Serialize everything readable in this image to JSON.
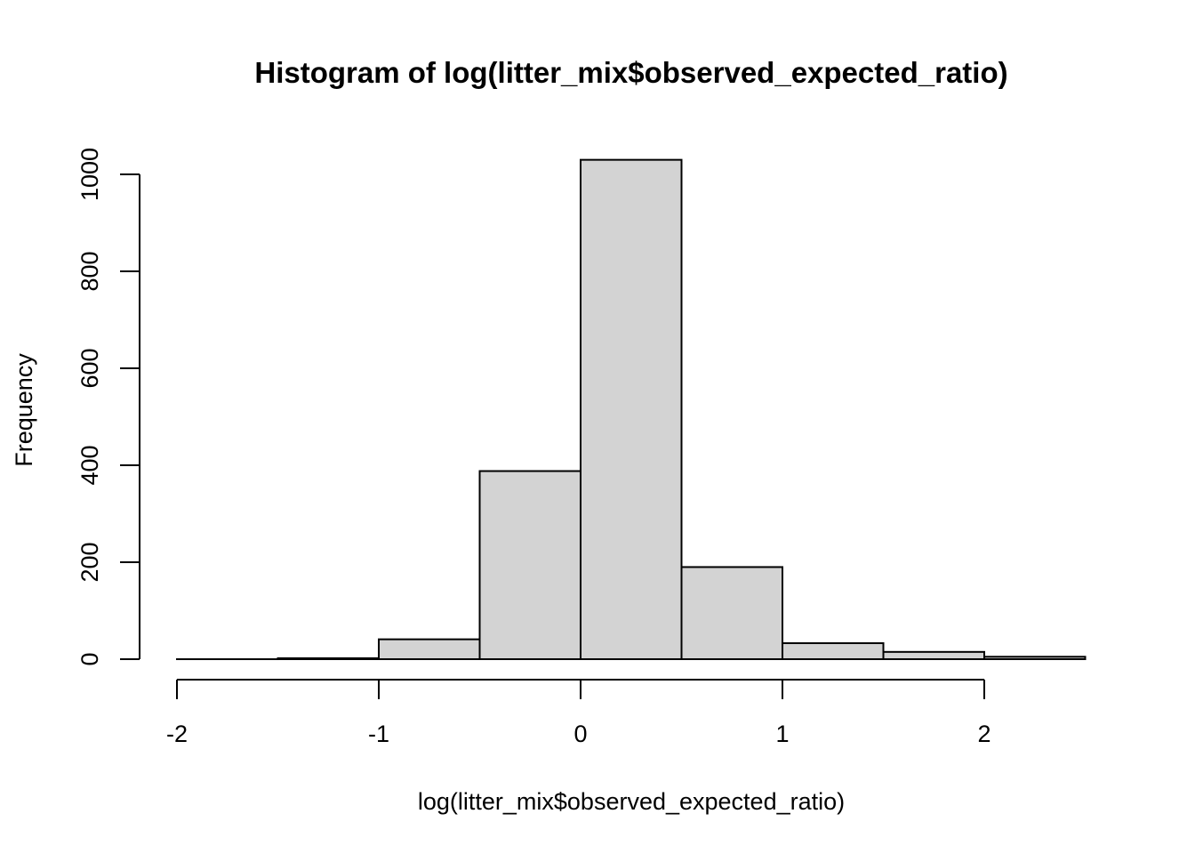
{
  "chart_data": {
    "type": "bar",
    "title": "Histogram of log(litter_mix$observed_expected_ratio)",
    "xlabel": "log(litter_mix$observed_expected_ratio)",
    "ylabel": "Frequency",
    "x_ticks": [
      -2,
      -1,
      0,
      1,
      2
    ],
    "y_ticks": [
      0,
      200,
      400,
      600,
      800,
      1000
    ],
    "bins": [
      {
        "start": -2.0,
        "end": -1.5,
        "count": 0
      },
      {
        "start": -1.5,
        "end": -1.0,
        "count": 2
      },
      {
        "start": -1.0,
        "end": -0.5,
        "count": 41
      },
      {
        "start": -0.5,
        "end": 0.0,
        "count": 388
      },
      {
        "start": 0.0,
        "end": 0.5,
        "count": 1030
      },
      {
        "start": 0.5,
        "end": 1.0,
        "count": 190
      },
      {
        "start": 1.0,
        "end": 1.5,
        "count": 33
      },
      {
        "start": 1.5,
        "end": 2.0,
        "count": 15
      },
      {
        "start": 2.0,
        "end": 2.5,
        "count": 5
      }
    ],
    "xlim": [
      -2,
      2.5
    ],
    "ylim": [
      0,
      1030
    ],
    "bar_color": "#d3d3d3",
    "grid": false
  }
}
